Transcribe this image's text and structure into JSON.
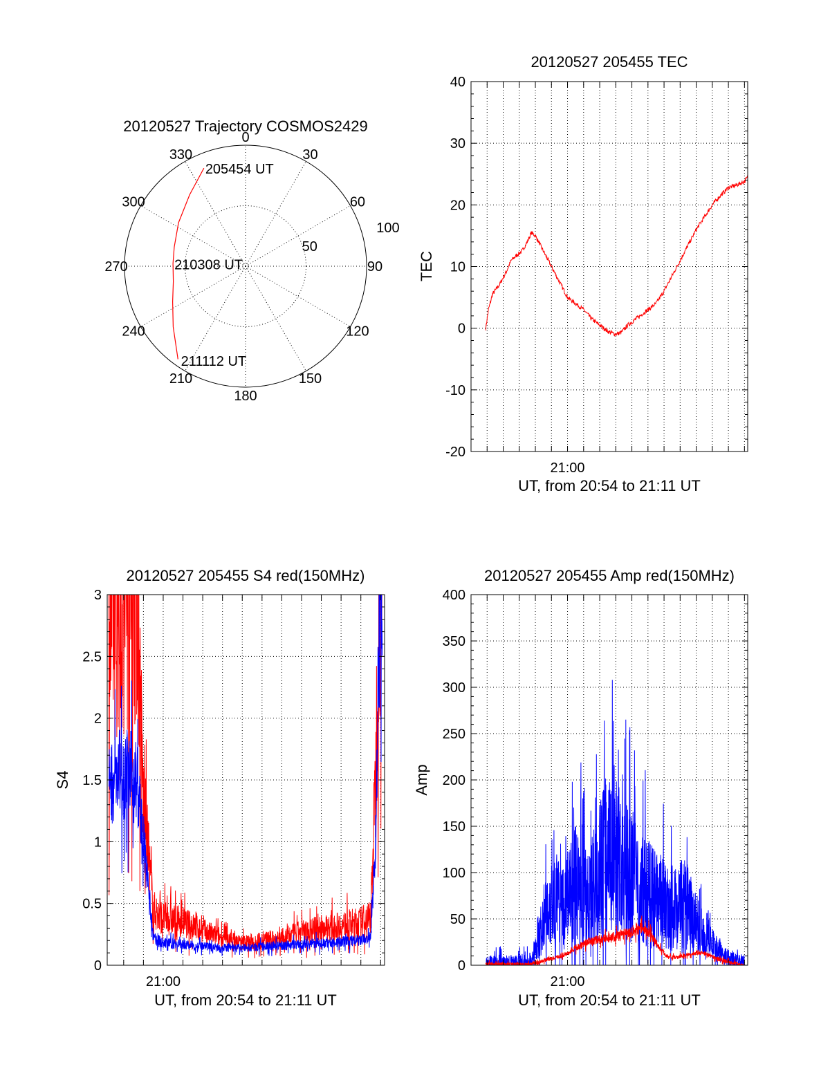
{
  "colors": {
    "red": "#ff0000",
    "blue": "#0000ff",
    "axis": "#000000"
  },
  "chart_data": [
    {
      "id": "trajectory",
      "type": "polar",
      "title": "20120527 Trajectory COSMOS2429",
      "angle_labels": [
        "0",
        "30",
        "60",
        "90",
        "120",
        "150",
        "180",
        "210",
        "240",
        "270",
        "300",
        "330"
      ],
      "angle_values": [
        0,
        30,
        60,
        90,
        120,
        150,
        180,
        210,
        240,
        270,
        300,
        330
      ],
      "radial_ticks": [
        {
          "label": "50",
          "zenith_angle": 50
        },
        {
          "label": "100",
          "zenith_angle": 100
        }
      ],
      "rlim": [
        0,
        100
      ],
      "grid": true,
      "annotations": [
        {
          "text": "205454 UT",
          "azimuth": 337,
          "zenith_angle": 88
        },
        {
          "text": "210308 UT",
          "azimuth": 272,
          "zenith_angle": 60
        },
        {
          "text": "211112 UT",
          "azimuth": 215,
          "zenith_angle": 95
        }
      ],
      "series": [
        {
          "color": "red",
          "points": [
            {
              "azimuth": 337,
              "zenith_angle": 88
            },
            {
              "azimuth": 322,
              "zenith_angle": 75
            },
            {
              "azimuth": 303,
              "zenith_angle": 66
            },
            {
              "azimuth": 285,
              "zenith_angle": 61
            },
            {
              "azimuth": 272,
              "zenith_angle": 60
            },
            {
              "azimuth": 258,
              "zenith_angle": 61
            },
            {
              "azimuth": 244,
              "zenith_angle": 67
            },
            {
              "azimuth": 230,
              "zenith_angle": 78
            },
            {
              "azimuth": 216,
              "zenith_angle": 95
            }
          ]
        }
      ]
    },
    {
      "id": "tec",
      "type": "line",
      "title": "20120527 205455 TEC",
      "xlabel": "UT, from 20:54 to 21:11 UT",
      "ylabel": "TEC",
      "xlim": [
        "20:54:00",
        "21:11:12"
      ],
      "ylim": [
        -20,
        40
      ],
      "yticks": [
        -20,
        -10,
        0,
        10,
        20,
        30,
        40
      ],
      "xtick_labels": [
        {
          "value": "21:00:00",
          "label": "21:00"
        }
      ],
      "grid": true,
      "series": [
        {
          "color": "red",
          "noise": 0.35,
          "x": [
            "20:54:55",
            "20:55:05",
            "20:55:20",
            "20:55:45",
            "20:56:10",
            "20:56:30",
            "20:56:50",
            "20:57:10",
            "20:57:30",
            "20:57:45",
            "20:58:00",
            "20:58:30",
            "20:59:00",
            "20:59:30",
            "21:00:00",
            "21:00:30",
            "21:01:00",
            "21:01:30",
            "21:02:00",
            "21:02:30",
            "21:03:00",
            "21:03:20",
            "21:03:45",
            "21:04:15",
            "21:04:45",
            "21:05:30",
            "21:06:00",
            "21:06:30",
            "21:07:00",
            "21:07:30",
            "21:08:00",
            "21:08:30",
            "21:09:00",
            "21:09:30",
            "21:10:00",
            "21:10:30",
            "21:11:00",
            "21:11:12"
          ],
          "y": [
            0.0,
            3.0,
            5.5,
            7.0,
            9.0,
            11.0,
            11.8,
            12.5,
            14.0,
            15.5,
            15.0,
            12.5,
            10.0,
            7.5,
            5.0,
            4.0,
            3.0,
            1.5,
            0.5,
            -0.5,
            -1.0,
            -0.7,
            0.5,
            1.5,
            2.5,
            4.0,
            6.0,
            8.5,
            11.0,
            13.5,
            16.0,
            18.0,
            20.0,
            21.5,
            22.8,
            23.2,
            23.8,
            24.5
          ]
        }
      ]
    },
    {
      "id": "s4",
      "type": "line",
      "title": "20120527 205455 S4 red(150MHz)",
      "xlabel": "UT, from 20:54 to 21:11 UT",
      "ylabel": "S4",
      "xlim": [
        "20:57:10",
        "21:11:12"
      ],
      "ylim": [
        0,
        3
      ],
      "yticks": [
        0,
        0.5,
        1,
        1.5,
        2,
        2.5,
        3
      ],
      "ytick_labels": [
        "0",
        "0.5",
        "1",
        "1.5",
        "2",
        "2.5",
        "3"
      ],
      "xtick_labels": [
        {
          "value": "21:00:00",
          "label": "21:00"
        }
      ],
      "grid": true,
      "series": [
        {
          "color": "red",
          "noise": 0.09,
          "x": [
            "20:57:15",
            "20:57:30",
            "20:57:50",
            "20:58:10",
            "20:58:40",
            "20:59:00",
            "20:59:30",
            "21:00:00",
            "21:01:00",
            "21:02:00",
            "21:03:00",
            "21:04:00",
            "21:05:00",
            "21:06:00",
            "21:07:00",
            "21:08:00",
            "21:09:00",
            "21:10:00",
            "21:10:30",
            "21:10:45",
            "21:10:55",
            "21:11:05"
          ],
          "y": [
            2.7,
            2.8,
            2.9,
            2.9,
            3.0,
            1.3,
            0.45,
            0.38,
            0.35,
            0.28,
            0.22,
            0.18,
            0.2,
            0.22,
            0.27,
            0.3,
            0.32,
            0.35,
            0.4,
            1.5,
            3.0,
            3.0
          ]
        },
        {
          "color": "blue",
          "noise": 0.06,
          "x": [
            "20:57:15",
            "20:57:30",
            "20:57:50",
            "20:58:10",
            "20:58:40",
            "20:59:00",
            "20:59:30",
            "21:00:00",
            "21:01:00",
            "21:02:00",
            "21:03:00",
            "21:04:00",
            "21:05:00",
            "21:06:00",
            "21:07:00",
            "21:08:00",
            "21:09:00",
            "21:10:00",
            "21:10:30",
            "21:10:45",
            "21:10:55",
            "21:11:05"
          ],
          "y": [
            1.5,
            1.5,
            1.55,
            1.55,
            1.5,
            1.0,
            0.22,
            0.18,
            0.17,
            0.15,
            0.14,
            0.14,
            0.15,
            0.16,
            0.17,
            0.18,
            0.19,
            0.2,
            0.22,
            1.0,
            2.8,
            3.0
          ]
        }
      ]
    },
    {
      "id": "amp",
      "type": "line",
      "title": "20120527 205455 Amp red(150MHz)",
      "xlabel": "UT, from 20:54 to 21:11 UT",
      "ylabel": "Amp",
      "xlim": [
        "20:54:00",
        "21:11:12"
      ],
      "ylim": [
        0,
        400
      ],
      "yticks": [
        0,
        50,
        100,
        150,
        200,
        250,
        300,
        350,
        400
      ],
      "xtick_labels": [
        {
          "value": "21:00:00",
          "label": "21:00"
        }
      ],
      "grid": true,
      "series": [
        {
          "color": "blue",
          "noise": 30,
          "x": [
            "20:54:55",
            "20:56:00",
            "20:57:00",
            "20:57:45",
            "20:58:10",
            "20:58:40",
            "20:59:10",
            "20:59:40",
            "21:00:10",
            "21:00:40",
            "21:01:10",
            "21:01:40",
            "21:02:10",
            "21:02:40",
            "21:03:10",
            "21:03:40",
            "21:04:10",
            "21:04:40",
            "21:05:10",
            "21:05:40",
            "21:06:10",
            "21:06:40",
            "21:07:10",
            "21:07:40",
            "21:08:10",
            "21:08:40",
            "21:09:10",
            "21:09:40",
            "21:10:10",
            "21:10:40",
            "21:11:00"
          ],
          "y": [
            2,
            2,
            2,
            2,
            25,
            60,
            75,
            60,
            80,
            90,
            70,
            85,
            110,
            130,
            120,
            100,
            95,
            85,
            75,
            70,
            65,
            60,
            70,
            55,
            40,
            30,
            20,
            12,
            6,
            3,
            1
          ]
        },
        {
          "color": "red",
          "noise": 7,
          "x": [
            "20:54:55",
            "20:57:00",
            "20:57:45",
            "20:58:10",
            "20:58:40",
            "20:59:10",
            "20:59:40",
            "21:00:10",
            "21:00:40",
            "21:01:10",
            "21:01:40",
            "21:02:10",
            "21:02:40",
            "21:03:10",
            "21:03:40",
            "21:04:10",
            "21:04:40",
            "21:05:10",
            "21:05:40",
            "21:06:10",
            "21:06:40",
            "21:07:10",
            "21:07:40",
            "21:08:10",
            "21:08:40",
            "21:09:10",
            "21:09:40",
            "21:10:10",
            "21:10:40",
            "21:11:00"
          ],
          "y": [
            1,
            1,
            1,
            3,
            6,
            8,
            10,
            14,
            20,
            24,
            27,
            28,
            30,
            32,
            35,
            38,
            40,
            34,
            20,
            10,
            8,
            10,
            12,
            14,
            12,
            8,
            5,
            3,
            1,
            0
          ]
        }
      ]
    }
  ]
}
